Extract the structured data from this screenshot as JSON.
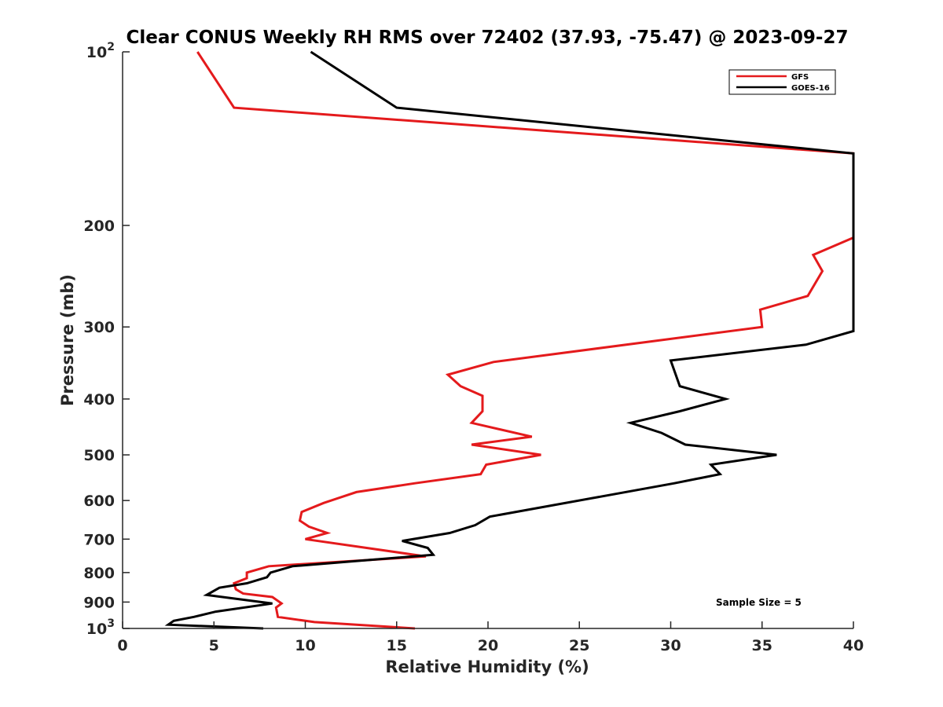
{
  "chart_data": {
    "type": "line",
    "title": "Clear CONUS Weekly RH RMS over 72402 (37.93, -75.47) @ 2023-09-27",
    "xlabel": "Relative Humidity (%)",
    "ylabel": "Pressure (mb)",
    "xlim": [
      0,
      40
    ],
    "ylim": [
      100,
      1000
    ],
    "y_scale": "log",
    "y_reversed": true,
    "x_ticks": [
      0,
      5,
      10,
      15,
      20,
      25,
      30,
      35,
      40
    ],
    "y_ticks": [
      {
        "value": 100,
        "base": "10",
        "exp": "2"
      },
      {
        "value": 200,
        "label": "200"
      },
      {
        "value": 300,
        "label": "300"
      },
      {
        "value": 400,
        "label": "400"
      },
      {
        "value": 500,
        "label": "500"
      },
      {
        "value": 600,
        "label": "600"
      },
      {
        "value": 700,
        "label": "700"
      },
      {
        "value": 800,
        "label": "800"
      },
      {
        "value": 900,
        "label": "900"
      },
      {
        "value": 1000,
        "base": "10",
        "exp": "3"
      }
    ],
    "legend": "top-right",
    "annotation": "Sample Size = 5",
    "series": [
      {
        "name": "GFS",
        "color": "#e41a1c",
        "points": [
          [
            4.1,
            100
          ],
          [
            6.1,
            125
          ],
          [
            40,
            150
          ],
          [
            40,
            210
          ],
          [
            37.8,
            225
          ],
          [
            38.3,
            240
          ],
          [
            37.5,
            265
          ],
          [
            34.9,
            280
          ],
          [
            35.0,
            300
          ],
          [
            20.3,
            345
          ],
          [
            17.8,
            363
          ],
          [
            18.5,
            380
          ],
          [
            19.7,
            395
          ],
          [
            19.7,
            420
          ],
          [
            19.1,
            440
          ],
          [
            22.4,
            465
          ],
          [
            19.1,
            480
          ],
          [
            22.9,
            500
          ],
          [
            19.9,
            520
          ],
          [
            19.6,
            540
          ],
          [
            16.0,
            560
          ],
          [
            12.8,
            580
          ],
          [
            11.0,
            606
          ],
          [
            9.8,
            628
          ],
          [
            9.7,
            650
          ],
          [
            10.2,
            666
          ],
          [
            11.2,
            683
          ],
          [
            10.0,
            700
          ],
          [
            16.6,
            750
          ],
          [
            8.0,
            780
          ],
          [
            6.8,
            800
          ],
          [
            6.8,
            818
          ],
          [
            6.1,
            835
          ],
          [
            6.2,
            855
          ],
          [
            6.6,
            870
          ],
          [
            8.2,
            882
          ],
          [
            8.7,
            905
          ],
          [
            8.4,
            920
          ],
          [
            8.5,
            955
          ],
          [
            10.5,
            975
          ],
          [
            16.0,
            1000
          ]
        ]
      },
      {
        "name": "GOES-16",
        "color": "#000000",
        "points": [
          [
            10.3,
            100
          ],
          [
            15.0,
            125
          ],
          [
            40,
            150
          ],
          [
            40,
            305
          ],
          [
            37.4,
            322
          ],
          [
            30.0,
            343
          ],
          [
            30.5,
            380
          ],
          [
            33.0,
            400
          ],
          [
            30.5,
            420
          ],
          [
            27.8,
            440
          ],
          [
            29.5,
            458
          ],
          [
            30.8,
            480
          ],
          [
            35.8,
            500
          ],
          [
            32.2,
            520
          ],
          [
            32.7,
            540
          ],
          [
            30.2,
            560
          ],
          [
            20.1,
            640
          ],
          [
            19.3,
            662
          ],
          [
            17.9,
            683
          ],
          [
            15.3,
            705
          ],
          [
            16.7,
            725
          ],
          [
            17.0,
            745
          ],
          [
            9.3,
            780
          ],
          [
            8.1,
            800
          ],
          [
            7.9,
            815
          ],
          [
            6.8,
            835
          ],
          [
            5.3,
            850
          ],
          [
            4.6,
            875
          ],
          [
            8.2,
            905
          ],
          [
            5.1,
            935
          ],
          [
            3.9,
            955
          ],
          [
            2.8,
            970
          ],
          [
            2.5,
            985
          ],
          [
            7.7,
            1000
          ]
        ]
      }
    ]
  }
}
